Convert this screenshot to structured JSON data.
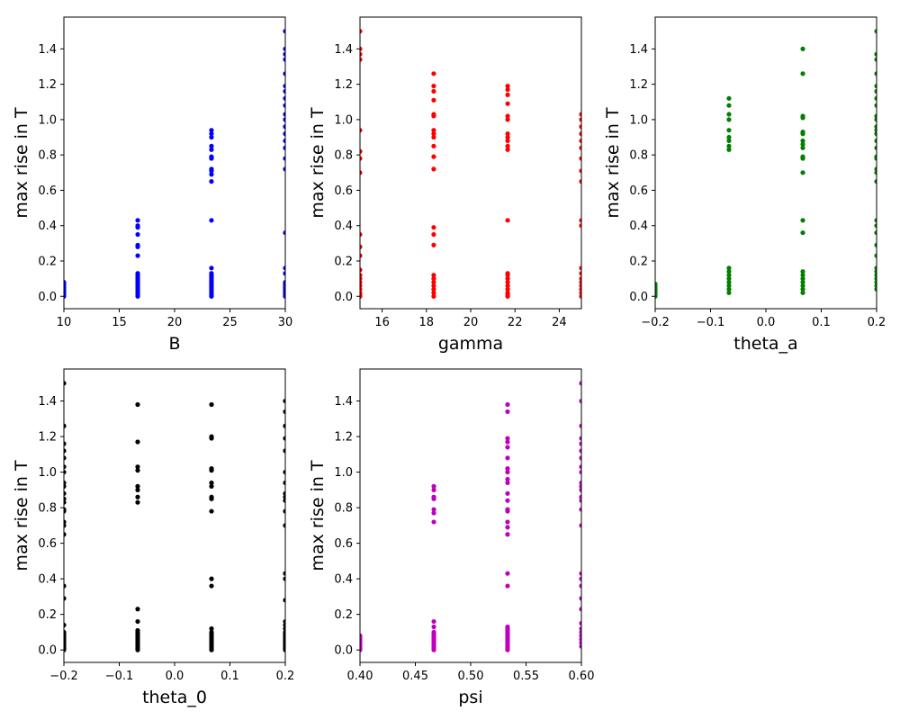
{
  "chart_data": [
    {
      "type": "scatter",
      "xlabel": "B",
      "ylabel": "max rise in T",
      "color": "#0000ff",
      "xlim": [
        10,
        30
      ],
      "ylim": [
        -0.07,
        1.58
      ],
      "xticks": [
        "10",
        "15",
        "20",
        "25",
        "30"
      ],
      "yticks": [
        "0.0",
        "0.2",
        "0.4",
        "0.6",
        "0.8",
        "1.0",
        "1.2",
        "1.4"
      ],
      "points": [
        {
          "x": 10,
          "values": [
            0.0,
            0.01,
            0.02,
            0.03,
            0.04,
            0.05,
            0.06,
            0.07,
            0.08
          ]
        },
        {
          "x": 16.67,
          "values": [
            0.0,
            0.01,
            0.02,
            0.03,
            0.04,
            0.05,
            0.06,
            0.07,
            0.08,
            0.09,
            0.1,
            0.11,
            0.12,
            0.13,
            0.23,
            0.28,
            0.29,
            0.35,
            0.39,
            0.4,
            0.43
          ]
        },
        {
          "x": 23.33,
          "values": [
            0.0,
            0.01,
            0.02,
            0.03,
            0.04,
            0.05,
            0.06,
            0.07,
            0.08,
            0.09,
            0.1,
            0.11,
            0.12,
            0.13,
            0.16,
            0.43,
            0.65,
            0.69,
            0.71,
            0.72,
            0.78,
            0.79,
            0.83,
            0.85,
            0.9,
            0.92,
            0.94
          ]
        },
        {
          "x": 30,
          "values": [
            0.0,
            0.01,
            0.02,
            0.03,
            0.04,
            0.05,
            0.06,
            0.07,
            0.08,
            0.13,
            0.16,
            0.36,
            0.72,
            0.78,
            0.84,
            0.88,
            0.92,
            0.96,
            1.0,
            1.03,
            1.08,
            1.12,
            1.16,
            1.19,
            1.26,
            1.34,
            1.37,
            1.4,
            1.5
          ]
        }
      ]
    },
    {
      "type": "scatter",
      "xlabel": "gamma",
      "ylabel": "max rise in T",
      "color": "#ff0000",
      "xlim": [
        15,
        25
      ],
      "ylim": [
        -0.07,
        1.58
      ],
      "xticks": [
        "16",
        "18",
        "20",
        "22",
        "24"
      ],
      "yticks": [
        "0.0",
        "0.2",
        "0.4",
        "0.6",
        "0.8",
        "1.0",
        "1.2",
        "1.4"
      ],
      "points": [
        {
          "x": 15,
          "values": [
            0.0,
            0.01,
            0.02,
            0.04,
            0.06,
            0.08,
            0.1,
            0.12,
            0.15,
            0.23,
            0.28,
            0.35,
            0.7,
            0.78,
            0.82,
            0.94,
            1.34,
            1.37,
            1.4,
            1.5
          ]
        },
        {
          "x": 18.33,
          "values": [
            0.0,
            0.02,
            0.04,
            0.06,
            0.08,
            0.1,
            0.12,
            0.29,
            0.35,
            0.39,
            0.72,
            0.79,
            0.85,
            0.9,
            0.92,
            0.94,
            1.02,
            1.03,
            1.11,
            1.16,
            1.19,
            1.26
          ]
        },
        {
          "x": 21.67,
          "values": [
            0.0,
            0.01,
            0.02,
            0.04,
            0.06,
            0.08,
            0.1,
            0.12,
            0.13,
            0.43,
            0.83,
            0.85,
            0.88,
            0.9,
            0.92,
            1.0,
            1.02,
            1.09,
            1.14,
            1.17,
            1.19
          ]
        },
        {
          "x": 25,
          "values": [
            0.0,
            0.02,
            0.04,
            0.06,
            0.08,
            0.1,
            0.13,
            0.16,
            0.4,
            0.43,
            0.65,
            0.71,
            0.78,
            0.84,
            0.88,
            0.92,
            0.96,
            1.0,
            1.03
          ]
        }
      ]
    },
    {
      "type": "scatter",
      "xlabel": "theta_a",
      "ylabel": "max rise in T",
      "color": "#008000",
      "xlim": [
        -0.2,
        0.2
      ],
      "ylim": [
        -0.07,
        1.58
      ],
      "xticks": [
        "−0.2",
        "−0.1",
        "0.0",
        "0.1",
        "0.2"
      ],
      "yticks": [
        "0.0",
        "0.2",
        "0.4",
        "0.6",
        "0.8",
        "1.0",
        "1.2",
        "1.4"
      ],
      "points": [
        {
          "x": -0.2,
          "values": [
            0.0,
            0.01,
            0.02,
            0.03,
            0.04,
            0.05,
            0.06,
            0.07
          ]
        },
        {
          "x": -0.0667,
          "values": [
            0.02,
            0.04,
            0.06,
            0.08,
            0.1,
            0.12,
            0.14,
            0.16,
            0.83,
            0.85,
            0.88,
            0.9,
            0.94,
            1.0,
            1.03,
            1.08,
            1.12
          ]
        },
        {
          "x": 0.0667,
          "values": [
            0.02,
            0.04,
            0.06,
            0.08,
            0.1,
            0.12,
            0.14,
            0.36,
            0.43,
            0.7,
            0.78,
            0.79,
            0.84,
            0.86,
            0.88,
            0.92,
            0.93,
            1.01,
            1.02,
            1.26,
            1.4
          ]
        },
        {
          "x": 0.2,
          "values": [
            0.04,
            0.06,
            0.08,
            0.1,
            0.12,
            0.14,
            0.16,
            0.23,
            0.29,
            0.36,
            0.4,
            0.43,
            0.65,
            0.7,
            0.72,
            0.78,
            0.79,
            0.84,
            0.88,
            0.92,
            0.94,
            0.96,
            1.0,
            1.02,
            1.08,
            1.12,
            1.16,
            1.19,
            1.26,
            1.34,
            1.37,
            1.5
          ]
        }
      ]
    },
    {
      "type": "scatter",
      "xlabel": "theta_0",
      "ylabel": "max rise in T",
      "color": "#000000",
      "xlim": [
        -0.2,
        0.2
      ],
      "ylim": [
        -0.07,
        1.58
      ],
      "xticks": [
        "−0.2",
        "−0.1",
        "0.0",
        "0.1",
        "0.2"
      ],
      "yticks": [
        "0.0",
        "0.2",
        "0.4",
        "0.6",
        "0.8",
        "1.0",
        "1.2",
        "1.4"
      ],
      "points": [
        {
          "x": -0.2,
          "values": [
            0.0,
            0.01,
            0.02,
            0.03,
            0.04,
            0.05,
            0.06,
            0.07,
            0.08,
            0.09,
            0.1,
            0.14,
            0.29,
            0.36,
            0.65,
            0.7,
            0.72,
            0.78,
            0.79,
            0.83,
            0.85,
            0.88,
            0.92,
            0.94,
            1.0,
            1.03,
            1.08,
            1.12,
            1.16,
            1.26,
            1.5
          ]
        },
        {
          "x": -0.0667,
          "values": [
            0.0,
            0.01,
            0.02,
            0.03,
            0.04,
            0.05,
            0.06,
            0.07,
            0.08,
            0.09,
            0.1,
            0.11,
            0.16,
            0.23,
            0.83,
            0.86,
            0.9,
            0.92,
            1.01,
            1.03,
            1.17,
            1.38
          ]
        },
        {
          "x": 0.0667,
          "values": [
            0.0,
            0.01,
            0.02,
            0.03,
            0.04,
            0.05,
            0.06,
            0.07,
            0.08,
            0.09,
            0.1,
            0.12,
            0.36,
            0.4,
            0.78,
            0.85,
            0.86,
            0.92,
            0.94,
            1.01,
            1.02,
            1.19,
            1.2,
            1.38
          ]
        },
        {
          "x": 0.2,
          "values": [
            0.0,
            0.01,
            0.02,
            0.03,
            0.04,
            0.05,
            0.06,
            0.07,
            0.08,
            0.09,
            0.1,
            0.12,
            0.14,
            0.16,
            0.28,
            0.4,
            0.43,
            0.7,
            0.78,
            0.84,
            0.86,
            0.88,
            0.94,
            1.0,
            1.12,
            1.19,
            1.26,
            1.34,
            1.4
          ]
        }
      ]
    },
    {
      "type": "scatter",
      "xlabel": "psi",
      "ylabel": "max rise in T",
      "color": "#bf00bf",
      "xlim": [
        0.4,
        0.6
      ],
      "ylim": [
        -0.07,
        1.58
      ],
      "xticks": [
        "0.40",
        "0.45",
        "0.50",
        "0.55",
        "0.60"
      ],
      "yticks": [
        "0.0",
        "0.2",
        "0.4",
        "0.6",
        "0.8",
        "1.0",
        "1.2",
        "1.4"
      ],
      "points": [
        {
          "x": 0.4,
          "values": [
            0.0,
            0.01,
            0.02,
            0.03,
            0.04,
            0.05,
            0.06,
            0.07,
            0.08
          ]
        },
        {
          "x": 0.4667,
          "values": [
            0.0,
            0.01,
            0.02,
            0.03,
            0.04,
            0.05,
            0.06,
            0.07,
            0.08,
            0.09,
            0.1,
            0.13,
            0.16,
            0.72,
            0.77,
            0.79,
            0.85,
            0.86,
            0.9,
            0.92
          ]
        },
        {
          "x": 0.5333,
          "values": [
            0.0,
            0.01,
            0.02,
            0.03,
            0.04,
            0.05,
            0.06,
            0.07,
            0.08,
            0.09,
            0.1,
            0.11,
            0.12,
            0.13,
            0.36,
            0.43,
            0.65,
            0.69,
            0.72,
            0.78,
            0.79,
            0.84,
            0.88,
            0.94,
            0.96,
            1.0,
            1.02,
            1.08,
            1.14,
            1.17,
            1.19,
            1.34,
            1.38
          ]
        },
        {
          "x": 0.6,
          "values": [
            0.02,
            0.04,
            0.06,
            0.08,
            0.1,
            0.12,
            0.15,
            0.23,
            0.29,
            0.36,
            0.4,
            0.43,
            0.7,
            0.79,
            0.84,
            0.86,
            0.9,
            0.92,
            0.94,
            1.0,
            1.03,
            1.08,
            1.12,
            1.16,
            1.19,
            1.26,
            1.4,
            1.5
          ]
        }
      ]
    }
  ]
}
